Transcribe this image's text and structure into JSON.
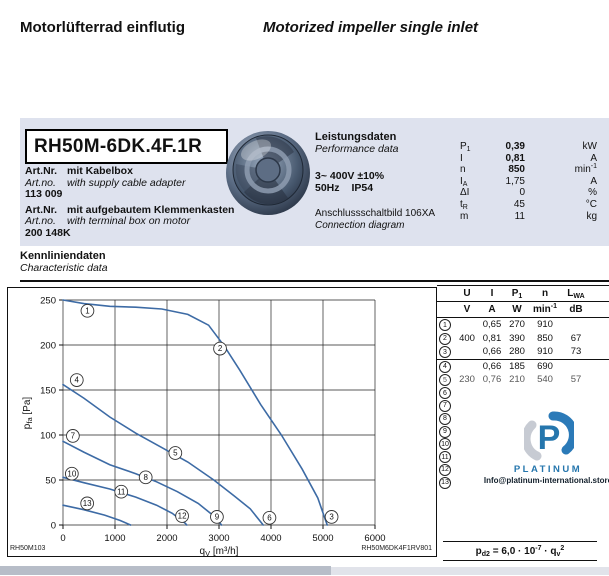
{
  "header": {
    "title_de": "Motorlüfterrad einflutig",
    "title_en": "Motorized impeller single inlet"
  },
  "product": {
    "model": "RH50M-6DK.4F.1R",
    "art1": {
      "label_de": "Art.Nr.",
      "text_de": "mit Kabelbox",
      "label_en": "Art.no.",
      "text_en": "with supply cable adapter",
      "number": "113 009"
    },
    "art2": {
      "label_de": "Art.Nr.",
      "text_de": "mit aufgebautem Klemmenkasten",
      "label_en": "Art.no.",
      "text_en": "with terminal box on motor",
      "number": "200 148K"
    }
  },
  "performance": {
    "title_de": "Leistungsdaten",
    "title_en": "Performance data",
    "voltage": "3~ 400V ±10%",
    "freq": "50Hz",
    "protection": "IP54",
    "diagram_de": "Anschlussschaltbild 106XA",
    "diagram_en": "Connection diagram",
    "rows": [
      {
        "sym": "P",
        "sub": "1",
        "val": "0,39",
        "unit": "kW",
        "sup": "",
        "bold": true
      },
      {
        "sym": "I",
        "sub": "",
        "val": "0,81",
        "unit": "A",
        "sup": "",
        "bold": true
      },
      {
        "sym": "n",
        "sub": "",
        "val": "850",
        "unit": "min",
        "sup": "-1",
        "bold": true
      },
      {
        "sym": "I",
        "sub": "A",
        "val": "1,75",
        "unit": "A",
        "sup": "",
        "bold": false
      },
      {
        "sym": "ΔI",
        "sub": "",
        "val": "0",
        "unit": "%",
        "sup": "",
        "bold": false
      },
      {
        "sym": "t",
        "sub": "R",
        "val": "45",
        "unit": "°C",
        "sup": "",
        "bold": false
      },
      {
        "sym": "m",
        "sub": "",
        "val": "11",
        "unit": "kg",
        "sup": "",
        "bold": false
      }
    ]
  },
  "characteristic": {
    "title_de": "Kennliniendaten",
    "title_en": "Characteristic data"
  },
  "chart_data": {
    "type": "line",
    "title": "",
    "xlabel": {
      "base": "q",
      "sub": "V",
      "unit": " [m³/h]"
    },
    "ylabel": {
      "base": "p",
      "sub": "fa",
      "unit": " [Pa]"
    },
    "xlim": [
      0,
      6000
    ],
    "ylim": [
      0,
      250
    ],
    "xticks": [
      0,
      1000,
      2000,
      3000,
      4000,
      5000,
      6000
    ],
    "yticks": [
      0,
      50,
      100,
      150,
      200,
      250
    ],
    "grid": true,
    "legend_position": "none",
    "curve_color": "#3d6ba5",
    "corner_label_left": "RH50M103",
    "corner_label_right": "RH50M6DK4F1RV801",
    "series": [
      {
        "name": "curve-1-2-3",
        "points": [
          [
            0,
            250
          ],
          [
            400,
            246
          ],
          [
            900,
            243
          ],
          [
            1400,
            242
          ],
          [
            1900,
            240
          ],
          [
            2400,
            234
          ],
          [
            2800,
            222
          ],
          [
            3100,
            199
          ],
          [
            3400,
            172
          ],
          [
            3800,
            134
          ],
          [
            4200,
            100
          ],
          [
            4600,
            62
          ],
          [
            4900,
            30
          ],
          [
            5080,
            0
          ]
        ]
      },
      {
        "name": "curve-4-5-6",
        "points": [
          [
            0,
            156
          ],
          [
            400,
            141
          ],
          [
            900,
            120
          ],
          [
            1400,
            102
          ],
          [
            1900,
            86
          ],
          [
            2400,
            70
          ],
          [
            2900,
            50
          ],
          [
            3300,
            32
          ],
          [
            3600,
            18
          ],
          [
            3850,
            0
          ]
        ]
      },
      {
        "name": "curve-7-8-9",
        "points": [
          [
            0,
            93
          ],
          [
            400,
            81
          ],
          [
            900,
            67
          ],
          [
            1400,
            57
          ],
          [
            1800,
            48
          ],
          [
            2200,
            37
          ],
          [
            2600,
            24
          ],
          [
            2900,
            10
          ],
          [
            3050,
            0
          ]
        ]
      },
      {
        "name": "curve-10-11-12",
        "points": [
          [
            0,
            53
          ],
          [
            400,
            47
          ],
          [
            900,
            40
          ],
          [
            1400,
            31
          ],
          [
            1800,
            22
          ],
          [
            2100,
            13
          ],
          [
            2350,
            2
          ],
          [
            2380,
            0
          ]
        ]
      },
      {
        "name": "curve-13",
        "points": [
          [
            0,
            22
          ],
          [
            400,
            17
          ],
          [
            800,
            11
          ],
          [
            1100,
            5
          ],
          [
            1300,
            0
          ]
        ]
      }
    ],
    "point_labels": [
      {
        "n": "1",
        "x": 470,
        "y": 238
      },
      {
        "n": "2",
        "x": 3020,
        "y": 196
      },
      {
        "n": "3",
        "x": 5165,
        "y": 9
      },
      {
        "n": "4",
        "x": 265,
        "y": 161
      },
      {
        "n": "5",
        "x": 2160,
        "y": 80
      },
      {
        "n": "6",
        "x": 3970,
        "y": 8
      },
      {
        "n": "7",
        "x": 190,
        "y": 99
      },
      {
        "n": "8",
        "x": 1590,
        "y": 53
      },
      {
        "n": "9",
        "x": 2960,
        "y": 9
      },
      {
        "n": "10",
        "x": 170,
        "y": 57
      },
      {
        "n": "11",
        "x": 1120,
        "y": 37
      },
      {
        "n": "12",
        "x": 2290,
        "y": 10
      },
      {
        "n": "13",
        "x": 465,
        "y": 24
      }
    ]
  },
  "op_table": {
    "headers": [
      {
        "t": "U",
        "sub": ""
      },
      {
        "t": "I",
        "sub": ""
      },
      {
        "t": "P",
        "sub": "1"
      },
      {
        "t": "n",
        "sub": ""
      },
      {
        "t": "L",
        "sub": "WA"
      }
    ],
    "units": [
      {
        "t": "V",
        "sup": ""
      },
      {
        "t": "A",
        "sup": ""
      },
      {
        "t": "W",
        "sup": ""
      },
      {
        "t": "min",
        "sup": "-1"
      },
      {
        "t": "dB",
        "sup": ""
      }
    ],
    "separator_after_row": 3,
    "rows": [
      {
        "n": "1",
        "u": "",
        "i": "0,65",
        "p1": "270",
        "rpm": "910",
        "lwa": "",
        "cut": false
      },
      {
        "n": "2",
        "u": "400",
        "i": "0,81",
        "p1": "390",
        "rpm": "850",
        "lwa": "67",
        "cut": false
      },
      {
        "n": "3",
        "u": "",
        "i": "0,66",
        "p1": "280",
        "rpm": "910",
        "lwa": "73",
        "cut": false
      },
      {
        "n": "4",
        "u": "",
        "i": "0,66",
        "p1": "185",
        "rpm": "690",
        "lwa": "",
        "cut": false
      },
      {
        "n": "5",
        "u": "230",
        "i": "0,76",
        "p1": "210",
        "rpm": "540",
        "lwa": "57",
        "cut": true
      },
      {
        "n": "6"
      },
      {
        "n": "7"
      },
      {
        "n": "8"
      },
      {
        "n": "9"
      },
      {
        "n": "10"
      },
      {
        "n": "11"
      },
      {
        "n": "12"
      },
      {
        "n": "13"
      }
    ]
  },
  "watermark": {
    "brand": "PLATINUM",
    "email": "Info@platinum-international.store"
  },
  "formula": {
    "base": "p",
    "base_sub": "d2",
    "mid": " = 6,0 · 10",
    "exp": "-7",
    "mid2": " · q",
    "q_sub": "v",
    "q_sup": "2"
  },
  "colors": {
    "panel_bg": "#dee2ee",
    "curve_blue": "#3d6ba5",
    "logo_blue": "#2576ad",
    "logo_gray": "#c7cbd3",
    "footer_left": "#b7bdc8",
    "footer_right": "#e1e3ea"
  }
}
